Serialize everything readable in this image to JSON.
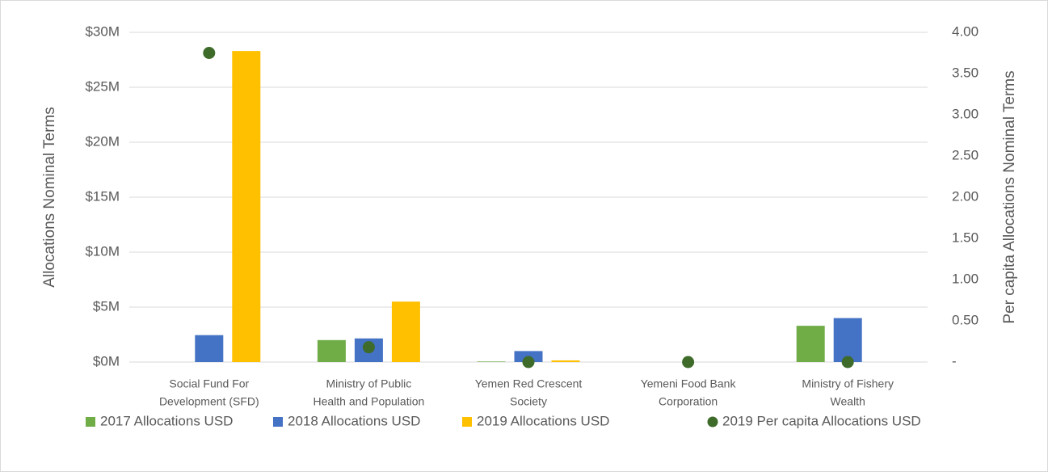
{
  "chart_data": {
    "type": "bar",
    "categories": [
      "Social Fund For Development (SFD)",
      "Ministry of Public Health and Population",
      "Yemen Red Crescent Society",
      "Yemeni Food Bank Corporation",
      "Ministry of Fishery Wealth"
    ],
    "category_lines": [
      [
        "Social Fund For",
        "Development (SFD)"
      ],
      [
        "Ministry of Public",
        "Health and Population"
      ],
      [
        "Yemen Red Crescent",
        "Society"
      ],
      [
        "Yemeni Food Bank",
        "Corporation"
      ],
      [
        "Ministry of Fishery",
        "Wealth"
      ]
    ],
    "series": [
      {
        "name": "2017 Allocations USD",
        "color": "#70ad47",
        "values": [
          0,
          2.0,
          0.05,
          0,
          3.3
        ]
      },
      {
        "name": "2018 Allocations USD",
        "color": "#4472c4",
        "values": [
          2.45,
          2.15,
          1.0,
          0,
          4.0
        ]
      },
      {
        "name": "2019 Allocations USD",
        "color": "#ffc000",
        "values": [
          28.3,
          5.5,
          0.15,
          0,
          0
        ]
      },
      {
        "name": "2019 Per capita Allocations USD",
        "color": "#3e6b2a",
        "type": "scatter",
        "axis": "y2",
        "values": [
          3.75,
          0.18,
          0,
          0,
          0
        ]
      }
    ],
    "ylabel": "Allocations Nominal Terms",
    "y2label": "Per capita Allocations Nominal Terms",
    "ylim": [
      0,
      30
    ],
    "yticks": [
      {
        "value": 0,
        "label": "$0M"
      },
      {
        "value": 5,
        "label": "$5M"
      },
      {
        "value": 10,
        "label": "$10M"
      },
      {
        "value": 15,
        "label": "$15M"
      },
      {
        "value": 20,
        "label": "$20M"
      },
      {
        "value": 25,
        "label": "$25M"
      },
      {
        "value": 30,
        "label": "$30M"
      }
    ],
    "y2lim": [
      0,
      4
    ],
    "y2ticks": [
      {
        "value": 0,
        "label": "-"
      },
      {
        "value": 0.5,
        "label": "0.50"
      },
      {
        "value": 1,
        "label": "1.00"
      },
      {
        "value": 1.5,
        "label": "1.50"
      },
      {
        "value": 2,
        "label": "2.00"
      },
      {
        "value": 2.5,
        "label": "2.50"
      },
      {
        "value": 3,
        "label": "3.00"
      },
      {
        "value": 3.5,
        "label": "3.50"
      },
      {
        "value": 4,
        "label": "4.00"
      }
    ],
    "grid": true,
    "legend": "bottom"
  }
}
